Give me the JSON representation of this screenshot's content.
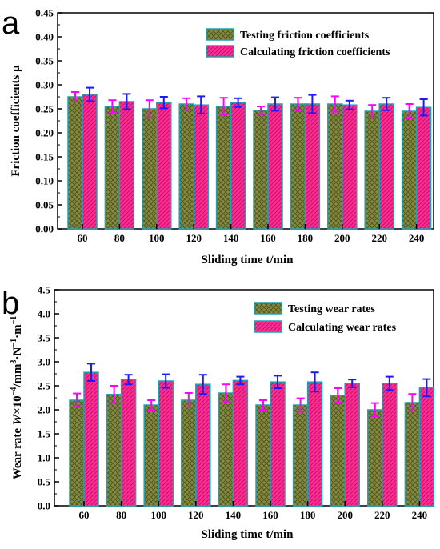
{
  "chart_data": [
    {
      "panel": "a",
      "type": "bar",
      "xlabel": "Sliding time t/min",
      "ylabel": "Friction coefficients μ",
      "ylim": [
        0,
        0.45
      ],
      "yticks": [
        "0.00",
        "0.05",
        "0.10",
        "0.15",
        "0.20",
        "0.25",
        "0.30",
        "0.35",
        "0.40",
        "0.45"
      ],
      "categories": [
        "60",
        "80",
        "100",
        "120",
        "140",
        "160",
        "180",
        "200",
        "220",
        "240"
      ],
      "legend_position": "top-right",
      "series": [
        {
          "name": "Testing friction coefficients",
          "values": [
            0.275,
            0.255,
            0.25,
            0.26,
            0.255,
            0.247,
            0.26,
            0.26,
            0.245,
            0.245
          ],
          "errors": [
            0.01,
            0.013,
            0.018,
            0.012,
            0.018,
            0.008,
            0.013,
            0.016,
            0.013,
            0.015
          ],
          "fill": "#8a8a3a",
          "pattern": "crosshatch",
          "error_color": "#ff00ff"
        },
        {
          "name": "Calculating friction coefficients",
          "values": [
            0.28,
            0.265,
            0.263,
            0.258,
            0.263,
            0.26,
            0.26,
            0.258,
            0.26,
            0.253
          ],
          "errors": [
            0.014,
            0.016,
            0.012,
            0.018,
            0.009,
            0.014,
            0.019,
            0.009,
            0.013,
            0.017
          ],
          "fill": "#ff2e93",
          "pattern": "diagonal",
          "error_color": "#1a1aff"
        }
      ]
    },
    {
      "panel": "b",
      "type": "bar",
      "xlabel": "Sliding time t/min",
      "ylabel_parts": [
        "Wear rate ",
        "W",
        "×10",
        "−4",
        "/mm",
        "3",
        "·N",
        "−1",
        "·m",
        "−1"
      ],
      "ylim": [
        0,
        4.5
      ],
      "yticks": [
        "0.0",
        "0.5",
        "1.0",
        "1.5",
        "2.0",
        "2.5",
        "3.0",
        "3.5",
        "4.0",
        "4.5"
      ],
      "categories": [
        "60",
        "80",
        "100",
        "120",
        "140",
        "160",
        "180",
        "200",
        "220",
        "240"
      ],
      "legend_position": "top-right",
      "series": [
        {
          "name": "Testing wear rates",
          "values": [
            2.2,
            2.32,
            2.1,
            2.2,
            2.35,
            2.1,
            2.1,
            2.3,
            2.0,
            2.15
          ],
          "errors": [
            0.14,
            0.18,
            0.1,
            0.15,
            0.18,
            0.1,
            0.14,
            0.15,
            0.14,
            0.18
          ],
          "fill": "#8a8a3a",
          "pattern": "crosshatch",
          "error_color": "#ff00ff"
        },
        {
          "name": "Calculating wear rates",
          "values": [
            2.78,
            2.63,
            2.6,
            2.53,
            2.61,
            2.58,
            2.58,
            2.55,
            2.55,
            2.46
          ],
          "errors": [
            0.18,
            0.1,
            0.14,
            0.2,
            0.08,
            0.13,
            0.2,
            0.08,
            0.14,
            0.18
          ],
          "fill": "#ff2e93",
          "pattern": "diagonal",
          "error_color": "#1a1aff"
        }
      ]
    }
  ]
}
